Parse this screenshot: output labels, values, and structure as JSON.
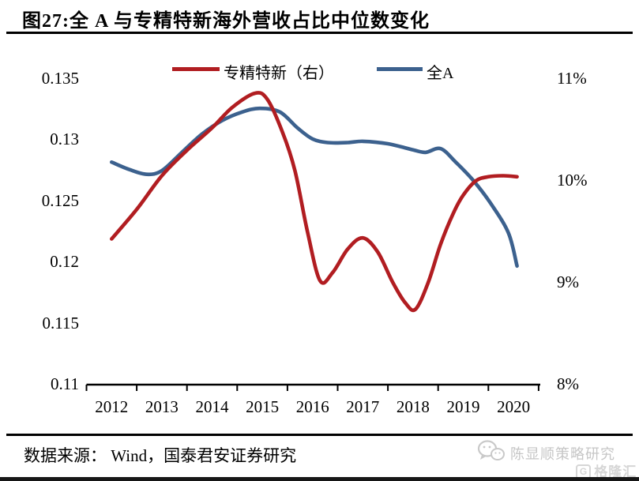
{
  "title": "图27:全 A 与专精特新海外营收占比中位数变化",
  "legend": [
    {
      "label": "专精特新（右）",
      "color": "#b11d21"
    },
    {
      "label": "全A",
      "color": "#3c618e"
    }
  ],
  "axes": {
    "left_ticks": [
      "0.135",
      "0.13",
      "0.125",
      "0.12",
      "0.115",
      "0.11"
    ],
    "right_ticks": [
      "11%",
      "10%",
      "9%",
      "8%"
    ],
    "x_ticks": [
      "2012",
      "2013",
      "2014",
      "2015",
      "2016",
      "2017",
      "2018",
      "2019",
      "2020"
    ]
  },
  "footer": {
    "source": "数据来源： Wind，国泰君安证券研究",
    "wechat_watermark": "陈显顺策略研究",
    "logo_badge": "G",
    "logo_text": "格隆汇"
  },
  "chart_data": {
    "type": "line",
    "title": "图27:全 A 与专精特新海外营收占比中位数变化",
    "smooth": true,
    "grid": false,
    "legend_position": "top",
    "categories": [
      "2012",
      "2013",
      "2014",
      "2015",
      "2016",
      "2017",
      "2018",
      "2019",
      "2020"
    ],
    "left_axis": {
      "min": 0.11,
      "max": 0.135,
      "ticks": [
        0.135,
        0.13,
        0.125,
        0.12,
        0.115,
        0.11
      ]
    },
    "right_axis": {
      "min": 8,
      "max": 11,
      "unit": "%",
      "ticks": [
        11,
        10,
        9,
        8
      ]
    },
    "series": [
      {
        "name": "专精特新（右）",
        "axis": "right",
        "unit": "%",
        "color": "#b11d21",
        "values": [
          9.4,
          10.1,
          10.5,
          10.8,
          9.0,
          9.4,
          8.7,
          9.9,
          10.1
        ],
        "samples": [
          [
            2012.0,
            9.43
          ],
          [
            2012.5,
            9.72
          ],
          [
            2013.0,
            10.05
          ],
          [
            2013.5,
            10.3
          ],
          [
            2014.0,
            10.52
          ],
          [
            2014.4,
            10.72
          ],
          [
            2014.85,
            10.86
          ],
          [
            2015.1,
            10.8
          ],
          [
            2015.4,
            10.48
          ],
          [
            2015.65,
            10.1
          ],
          [
            2015.9,
            9.5
          ],
          [
            2016.15,
            9.02
          ],
          [
            2016.4,
            9.1
          ],
          [
            2016.7,
            9.33
          ],
          [
            2017.0,
            9.44
          ],
          [
            2017.3,
            9.3
          ],
          [
            2017.6,
            9.0
          ],
          [
            2017.85,
            8.8
          ],
          [
            2018.05,
            8.74
          ],
          [
            2018.3,
            9.0
          ],
          [
            2018.55,
            9.38
          ],
          [
            2018.8,
            9.68
          ],
          [
            2019.0,
            9.86
          ],
          [
            2019.25,
            10.0
          ],
          [
            2019.5,
            10.04
          ],
          [
            2019.8,
            10.05
          ],
          [
            2020.07,
            10.04
          ]
        ]
      },
      {
        "name": "全A",
        "axis": "left",
        "unit": "",
        "color": "#3c618e",
        "values": [
          0.128,
          0.127,
          0.132,
          0.133,
          0.13,
          0.13,
          0.129,
          0.127,
          0.12
        ],
        "samples": [
          [
            2012.0,
            0.1282
          ],
          [
            2012.35,
            0.1276
          ],
          [
            2012.7,
            0.1272
          ],
          [
            2013.0,
            0.1275
          ],
          [
            2013.4,
            0.129
          ],
          [
            2013.8,
            0.1305
          ],
          [
            2014.2,
            0.1316
          ],
          [
            2014.6,
            0.1323
          ],
          [
            2014.95,
            0.1326
          ],
          [
            2015.35,
            0.1323
          ],
          [
            2015.7,
            0.131
          ],
          [
            2016.0,
            0.1301
          ],
          [
            2016.3,
            0.1298
          ],
          [
            2016.7,
            0.1298
          ],
          [
            2017.0,
            0.1299
          ],
          [
            2017.5,
            0.1297
          ],
          [
            2018.0,
            0.1292
          ],
          [
            2018.25,
            0.129
          ],
          [
            2018.55,
            0.1293
          ],
          [
            2018.85,
            0.1282
          ],
          [
            2019.2,
            0.1267
          ],
          [
            2019.55,
            0.1248
          ],
          [
            2019.9,
            0.1224
          ],
          [
            2020.07,
            0.1197
          ]
        ]
      }
    ]
  }
}
